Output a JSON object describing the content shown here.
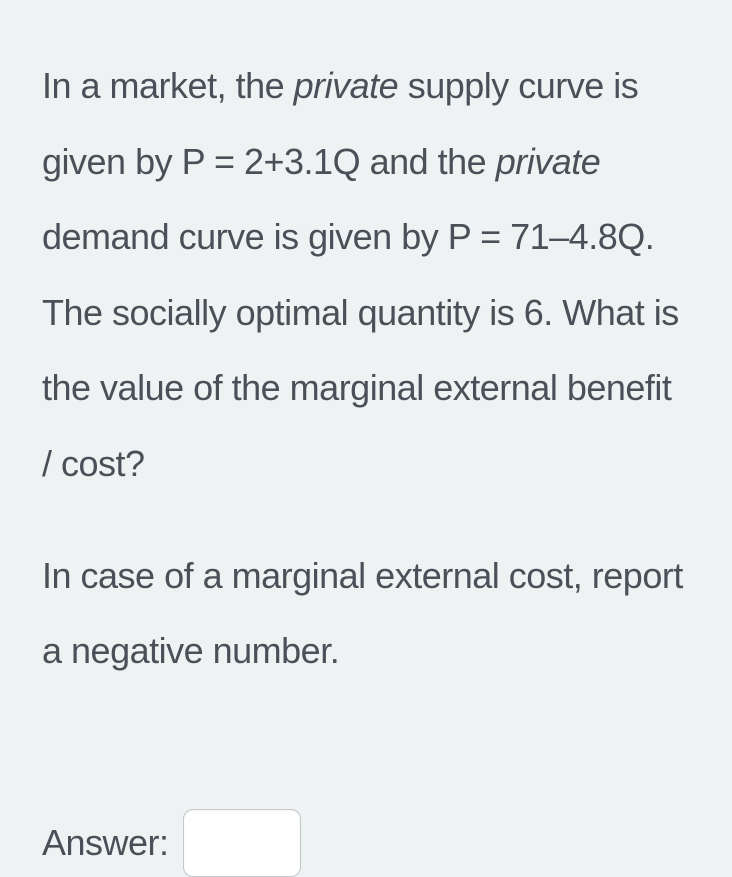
{
  "question": {
    "paragraph1": {
      "part1": "In a market, the ",
      "italic1": "private",
      "part2": " supply curve is given by P = 2+3.1Q and the ",
      "italic2": "private",
      "part3": " demand curve is given by P = 71–4.8Q. The socially optimal quantity is 6. What is the value of the marginal external benefit / cost?"
    },
    "paragraph2": "In case of a marginal external cost, report a negative number."
  },
  "answer": {
    "label": "Answer:",
    "value": ""
  },
  "styling": {
    "background_color": "#eef2f3",
    "text_color": "#4a5058",
    "input_border_color": "#c3c8cc",
    "input_background": "#ffffff",
    "font_size_body": 36,
    "font_weight": 300,
    "line_height": 2.1,
    "input_width": 118,
    "input_height": 68,
    "input_border_radius": 10
  }
}
